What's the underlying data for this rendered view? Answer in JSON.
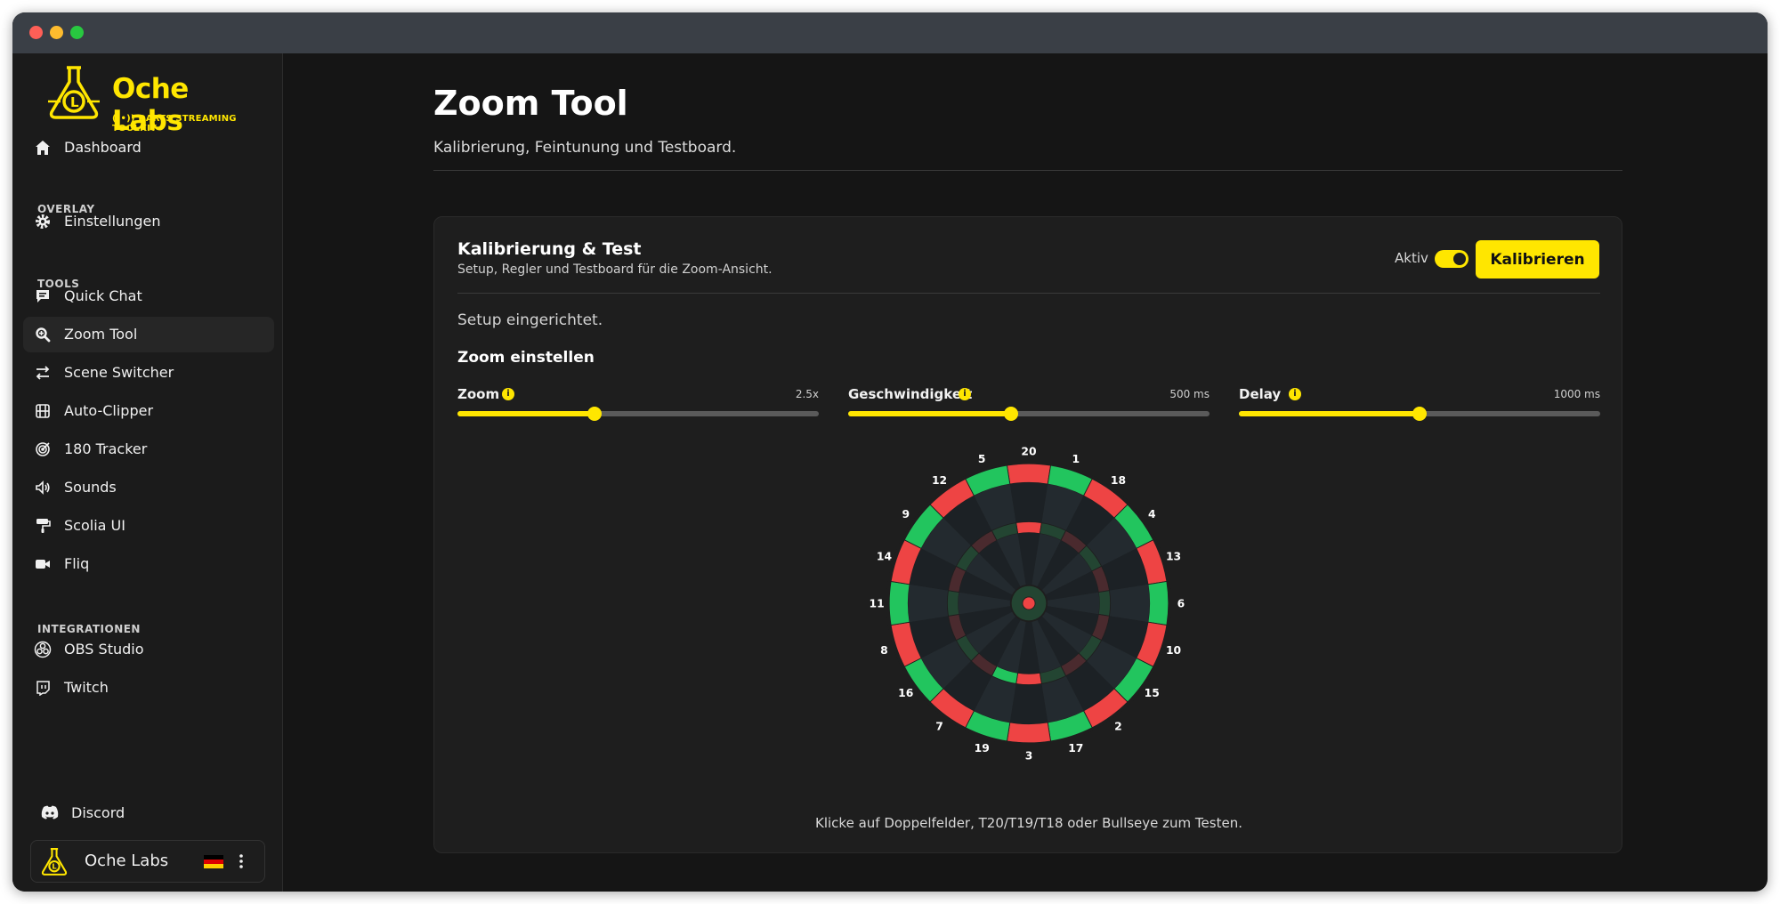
{
  "app": {
    "logo_title": "Oche Labs",
    "logo_subtitle": "((•)) DARTS STREAMING TOOLKIT",
    "accent": "#ffe600"
  },
  "sidebar": {
    "dashboard": "Dashboard",
    "section_overlay": "OVERLAY",
    "einstellungen": "Einstellungen",
    "section_tools": "TOOLS",
    "tools": [
      {
        "label": "Quick Chat",
        "icon": "chat-icon"
      },
      {
        "label": "Zoom Tool",
        "icon": "zoom-icon",
        "active": true
      },
      {
        "label": "Scene Switcher",
        "icon": "switch-arrows-icon"
      },
      {
        "label": "Auto-Clipper",
        "icon": "film-icon"
      },
      {
        "label": "180 Tracker",
        "icon": "target-icon"
      },
      {
        "label": "Sounds",
        "icon": "speaker-icon"
      },
      {
        "label": "Scolia UI",
        "icon": "paint-roller-icon"
      },
      {
        "label": "Fliq",
        "icon": "video-camera-icon"
      }
    ],
    "section_integrations": "INTEGRATIONEN",
    "integrations": [
      {
        "label": "OBS Studio",
        "icon": "obs-icon"
      },
      {
        "label": "Twitch",
        "icon": "twitch-icon"
      }
    ],
    "discord": "Discord",
    "user_name": "Oche Labs"
  },
  "page": {
    "title": "Zoom Tool",
    "subtitle": "Kalibrierung, Feintunung und Testboard."
  },
  "card": {
    "title": "Kalibrierung & Test",
    "subtitle": "Setup, Regler und Testboard für die Zoom-Ansicht.",
    "aktiv_label": "Aktiv",
    "aktiv_on": true,
    "calibrate_button": "Kalibrieren",
    "status": "Setup eingerichtet.",
    "zoom_heading": "Zoom einstellen",
    "hint": "Klicke auf Doppelfelder, T20/T19/T18 oder Bullseye zum Testen."
  },
  "sliders": [
    {
      "label": "Zoom",
      "value": "2.5x",
      "fraction": 0.38
    },
    {
      "label": "Geschwindigkeit",
      "value": "500 ms",
      "fraction": 0.45
    },
    {
      "label": "Delay",
      "value": "1000 ms",
      "fraction": 0.5
    }
  ],
  "dartboard": {
    "numbers": [
      "20",
      "1",
      "18",
      "4",
      "13",
      "6",
      "10",
      "15",
      "2",
      "17",
      "3",
      "19",
      "7",
      "16",
      "8",
      "11",
      "14",
      "9",
      "12",
      "5"
    ],
    "colors": {
      "red": "#ee4444",
      "green": "#22c55e",
      "dark": "#1c2125",
      "dark_alt": "#232a2f"
    }
  }
}
